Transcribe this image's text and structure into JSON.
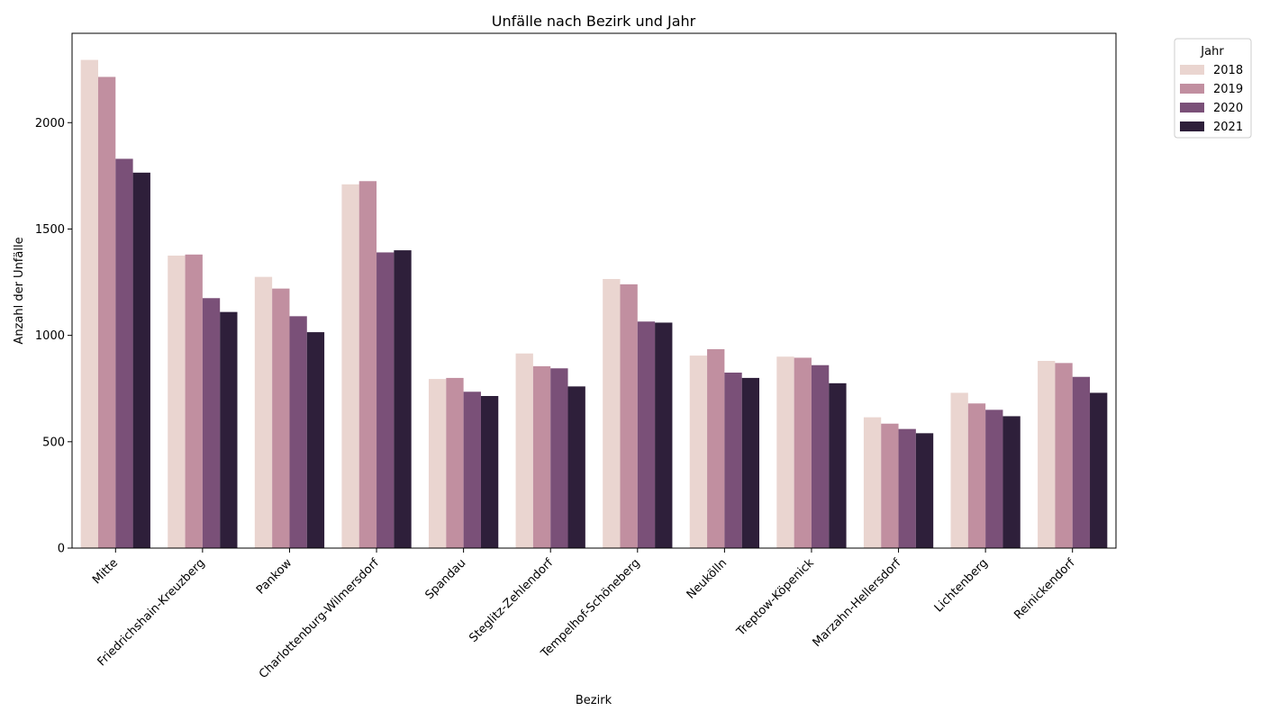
{
  "chart_data": {
    "type": "bar",
    "title": "Unfälle nach Bezirk und Jahr",
    "xlabel": "Bezirk",
    "ylabel": "Anzahl der Unfälle",
    "ylim": [
      0,
      2420
    ],
    "yticks": [
      0,
      500,
      1000,
      1500,
      2000
    ],
    "grid": false,
    "legend": {
      "title": "Jahr",
      "placement": "outside-top-right"
    },
    "categories": [
      "Mitte",
      "Friedrichshain-Kreuzberg",
      "Pankow",
      "Charlottenburg-Wilmersdorf",
      "Spandau",
      "Steglitz-Zehlendorf",
      "Tempelhof-Schöneberg",
      "Neukölln",
      "Treptow-Köpenick",
      "Marzahn-Hellersdorf",
      "Lichtenberg",
      "Reinickendorf"
    ],
    "series": [
      {
        "name": "2018",
        "color": "#ead5d0",
        "values": [
          2295,
          1375,
          1275,
          1710,
          795,
          915,
          1265,
          905,
          900,
          615,
          730,
          880
        ]
      },
      {
        "name": "2019",
        "color": "#c18fa0",
        "values": [
          2215,
          1380,
          1220,
          1725,
          800,
          855,
          1240,
          935,
          895,
          585,
          680,
          870
        ]
      },
      {
        "name": "2020",
        "color": "#7a5078",
        "values": [
          1830,
          1175,
          1090,
          1390,
          735,
          845,
          1065,
          825,
          860,
          560,
          650,
          805
        ]
      },
      {
        "name": "2021",
        "color": "#2e1f3a",
        "values": [
          1765,
          1110,
          1015,
          1400,
          715,
          760,
          1060,
          800,
          775,
          540,
          620,
          730
        ]
      }
    ]
  }
}
